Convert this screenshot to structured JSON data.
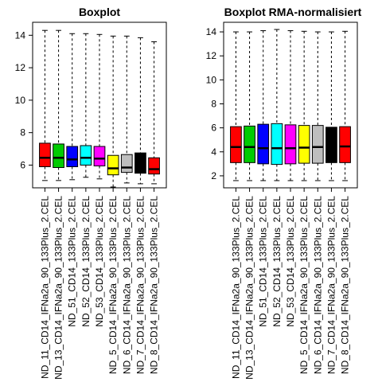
{
  "chart_data": [
    {
      "type": "box",
      "title": "Boxplot",
      "xlabel": "",
      "ylabel": "",
      "ylim": [
        4.6,
        14.8
      ],
      "yticks": [
        6,
        8,
        10,
        12,
        14
      ],
      "categories": [
        "ND_11_CD14_IFNa2a_90_133Plus_2.CEL",
        "ND_13_CD14_IFNa2a_90_133Plus_2.CEL",
        "ND_51_CD14_133Plus_2.CEL",
        "ND_52_CD14_133Plus_2.CEL",
        "ND_53_CD14_133Plus_2.CEL",
        "ND_5_CD14_IFNa2a_90_133Plus_2.CEL",
        "ND_6_CD14_IFNa2a_90_133Plus_2.CEL",
        "ND_7_CD14_IFNa2a_90_133Plus_2.CEL",
        "ND_8_CD14_IFNa2a_90_133Plus_2.CEL"
      ],
      "box_colors": [
        "#ff0000",
        "#00cc00",
        "#0000ff",
        "#00ffff",
        "#ff00ff",
        "#ffff00",
        "#bebebe",
        "#000000",
        "#ff0000"
      ],
      "boxes": [
        {
          "whisker_low": 5.05,
          "q1": 5.9,
          "median": 6.45,
          "q3": 7.35,
          "whisker_high": 14.3
        },
        {
          "whisker_low": 5.05,
          "q1": 5.85,
          "median": 6.45,
          "q3": 7.3,
          "whisker_high": 14.3
        },
        {
          "whisker_low": 5.1,
          "q1": 5.9,
          "median": 6.35,
          "q3": 7.15,
          "whisker_high": 14.1
        },
        {
          "whisker_low": 5.25,
          "q1": 6.0,
          "median": 6.45,
          "q3": 7.2,
          "whisker_high": 14.1
        },
        {
          "whisker_low": 5.15,
          "q1": 5.95,
          "median": 6.4,
          "q3": 7.15,
          "whisker_high": 14.05
        },
        {
          "whisker_low": 4.65,
          "q1": 5.4,
          "median": 5.8,
          "q3": 6.6,
          "whisker_high": 13.95
        },
        {
          "whisker_low": 4.9,
          "q1": 5.55,
          "median": 5.85,
          "q3": 6.65,
          "whisker_high": 13.95
        },
        {
          "whisker_low": 4.85,
          "q1": 5.5,
          "median": 5.9,
          "q3": 6.75,
          "whisker_high": 13.85
        },
        {
          "whisker_low": 4.85,
          "q1": 5.45,
          "median": 5.75,
          "q3": 6.45,
          "whisker_high": 13.6
        }
      ]
    },
    {
      "type": "box",
      "title": "Boxplot RMA-normalisiert",
      "xlabel": "",
      "ylabel": "",
      "ylim": [
        1.0,
        14.8
      ],
      "yticks": [
        2,
        4,
        6,
        8,
        10,
        12,
        14
      ],
      "categories": [
        "ND_11_CD14_IFNa2a_90_133Plus_2.CEL",
        "ND_13_CD14_IFNa2a_90_133Plus_2.CEL",
        "ND_51_CD14_133Plus_2.CEL",
        "ND_52_CD14_133Plus_2.CEL",
        "ND_53_CD14_133Plus_2.CEL",
        "ND_5_CD14_IFNa2a_90_133Plus_2.CEL",
        "ND_6_CD14_IFNa2a_90_133Plus_2.CEL",
        "ND_7_CD14_IFNa2a_90_133Plus_2.CEL",
        "ND_8_CD14_IFNa2a_90_133Plus_2.CEL"
      ],
      "box_colors": [
        "#ff0000",
        "#00cc00",
        "#0000ff",
        "#00ffff",
        "#ff00ff",
        "#ffff00",
        "#bebebe",
        "#000000",
        "#ff0000"
      ],
      "boxes": [
        {
          "whisker_low": 1.6,
          "q1": 3.1,
          "median": 4.4,
          "q3": 6.1,
          "whisker_high": 14.0
        },
        {
          "whisker_low": 1.6,
          "q1": 3.1,
          "median": 4.4,
          "q3": 6.15,
          "whisker_high": 14.0
        },
        {
          "whisker_low": 1.6,
          "q1": 3.0,
          "median": 4.3,
          "q3": 6.3,
          "whisker_high": 14.1
        },
        {
          "whisker_low": 1.6,
          "q1": 2.95,
          "median": 4.3,
          "q3": 6.35,
          "whisker_high": 14.2
        },
        {
          "whisker_low": 1.6,
          "q1": 3.0,
          "median": 4.3,
          "q3": 6.25,
          "whisker_high": 14.1
        },
        {
          "whisker_low": 1.6,
          "q1": 3.05,
          "median": 4.35,
          "q3": 6.2,
          "whisker_high": 14.05
        },
        {
          "whisker_low": 1.6,
          "q1": 3.05,
          "median": 4.4,
          "q3": 6.2,
          "whisker_high": 14.0
        },
        {
          "whisker_low": 1.6,
          "q1": 3.1,
          "median": 4.4,
          "q3": 6.05,
          "whisker_high": 14.0
        },
        {
          "whisker_low": 1.6,
          "q1": 3.1,
          "median": 4.45,
          "q3": 6.1,
          "whisker_high": 14.05
        }
      ]
    }
  ]
}
